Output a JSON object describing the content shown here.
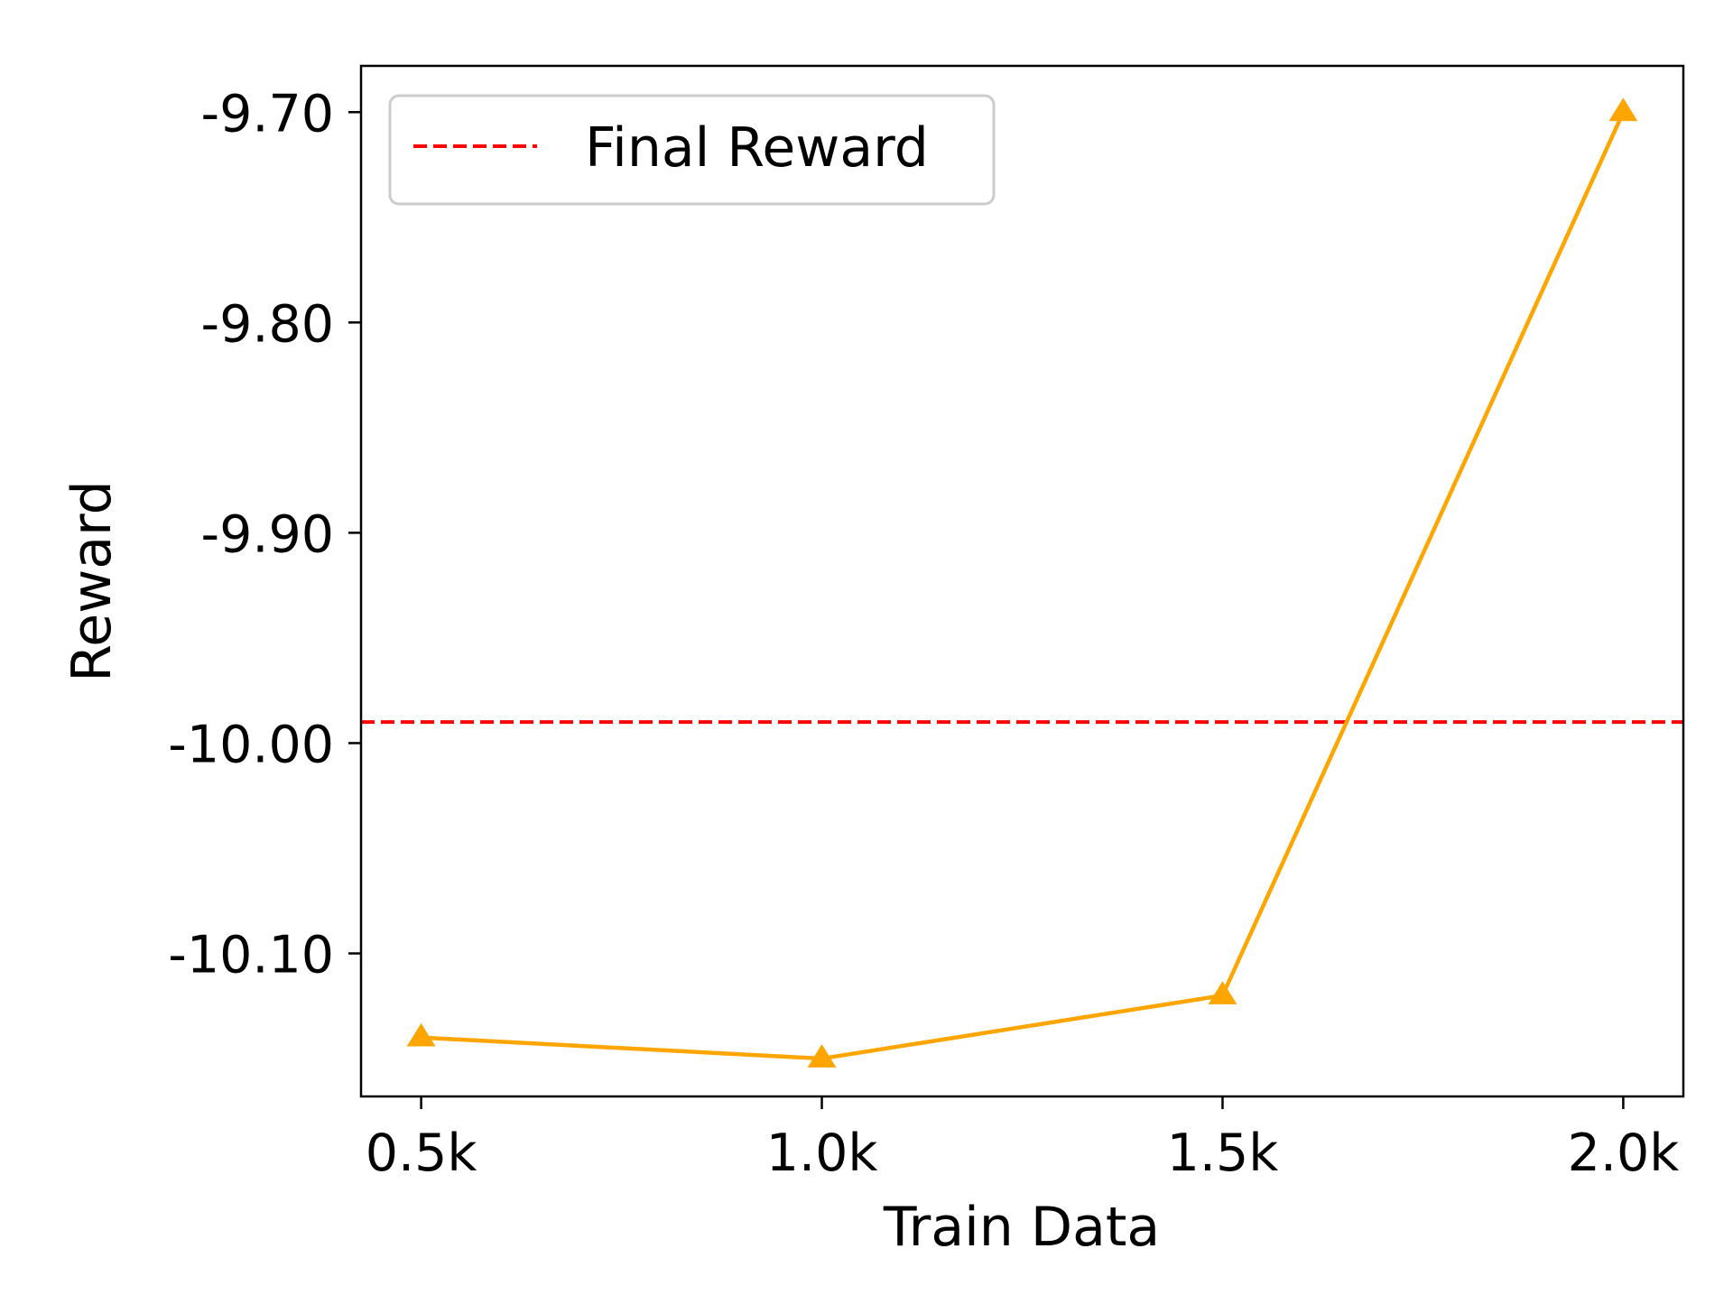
{
  "chart_data": {
    "type": "line",
    "title": "",
    "xlabel": "Train Data",
    "ylabel": "Reward",
    "x_tick_labels": [
      "0.5k",
      "1.0k",
      "1.5k",
      "2.0k"
    ],
    "y_tick_labels": [
      "-9.70",
      "-9.80",
      "-9.90",
      "-10.00",
      "-10.10"
    ],
    "y_ticks": [
      -9.7,
      -9.8,
      -9.9,
      -10.0,
      -10.1
    ],
    "xlim": [
      0.425,
      2.075
    ],
    "ylim": [
      -10.168,
      -9.678
    ],
    "grid": false,
    "legend_position": "top-left",
    "series": [
      {
        "x": [
          0.5,
          1.0,
          1.5,
          2.0
        ],
        "values": [
          -10.14,
          -10.15,
          -10.12,
          -9.7
        ],
        "color": "#FFA500",
        "marker": "triangle-up"
      }
    ],
    "reference_lines": [
      {
        "name": "Final Reward",
        "y": -9.99,
        "color": "#FF0000",
        "style": "dashed"
      }
    ]
  }
}
